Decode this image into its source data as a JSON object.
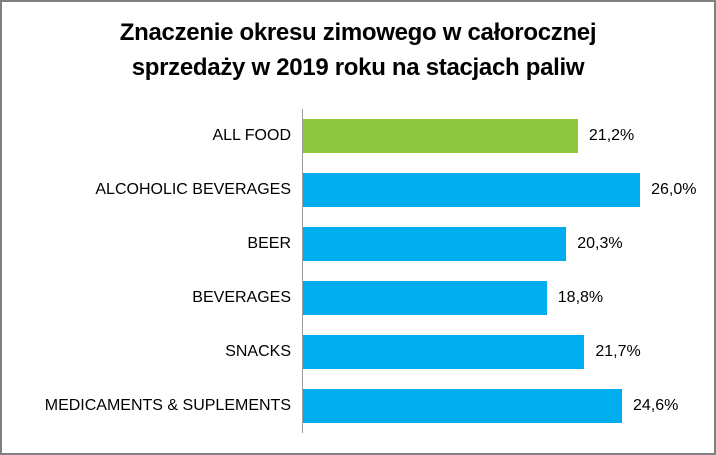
{
  "header": {
    "title_line1": "Znaczenie okresu zimowego w całorocznej",
    "title_line2": "sprzedaży w 2019 roku na stacjach paliw"
  },
  "colors": {
    "highlight_bar": "#8DC63F",
    "default_bar": "#00AEEF",
    "axis_line": "#9C9C9C",
    "border": "#808080",
    "text": "#000000",
    "background": "#FFFFFF"
  },
  "chart_data": {
    "type": "bar",
    "orientation": "horizontal",
    "title": "Znaczenie okresu zimowego w całorocznej sprzedaży w 2019 roku na stacjach paliw",
    "categories": [
      "ALL FOOD",
      "ALCOHOLIC BEVERAGES",
      "BEER",
      "BEVERAGES",
      "SNACKS",
      "MEDICAMENTS & SUPLEMENTS"
    ],
    "values": [
      21.2,
      26.0,
      20.3,
      18.8,
      21.7,
      24.6
    ],
    "value_labels": [
      "21,2%",
      "26,0%",
      "20,3%",
      "18,8%",
      "21,7%",
      "24,6%"
    ],
    "bar_colors": [
      "#8DC63F",
      "#00AEEF",
      "#00AEEF",
      "#00AEEF",
      "#00AEEF",
      "#00AEEF"
    ],
    "xlabel": "",
    "ylabel": "",
    "xlim": [
      0,
      30
    ],
    "grid": false,
    "legend": false,
    "value_label_format": "0,0%"
  }
}
